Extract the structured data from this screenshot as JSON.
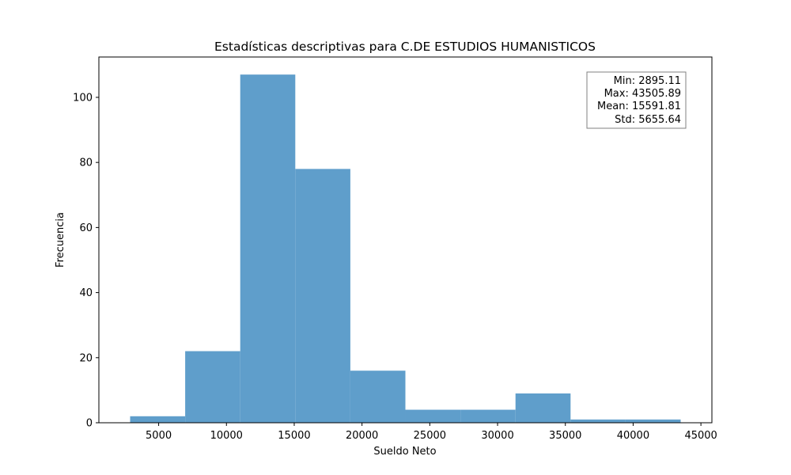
{
  "chart_data": {
    "type": "bar",
    "title": "Estadísticas descriptivas para C.DE ESTUDIOS HUMANISTICOS",
    "xlabel": "Sueldo Neto",
    "ylabel": "Frecuencia",
    "xlim": [
      590,
      45810
    ],
    "ylim": [
      0,
      112.4
    ],
    "xticks": [
      5000,
      10000,
      15000,
      20000,
      25000,
      30000,
      35000,
      40000,
      45000
    ],
    "yticks": [
      0,
      20,
      40,
      60,
      80,
      100
    ],
    "bin_edges": [
      2895.11,
      6956.19,
      11017.27,
      15078.35,
      19139.43,
      23200.5,
      27261.58,
      31322.66,
      35383.74,
      39444.81,
      43505.89
    ],
    "values": [
      2,
      22,
      107,
      78,
      16,
      4,
      4,
      9,
      1,
      1
    ],
    "bar_color": "#5f9ecb",
    "grid": false,
    "stats_box": {
      "position": "top-right",
      "lines": [
        "Min: 2895.11",
        "Max: 43505.89",
        "Mean: 15591.81",
        "Std: 5655.64"
      ]
    }
  }
}
